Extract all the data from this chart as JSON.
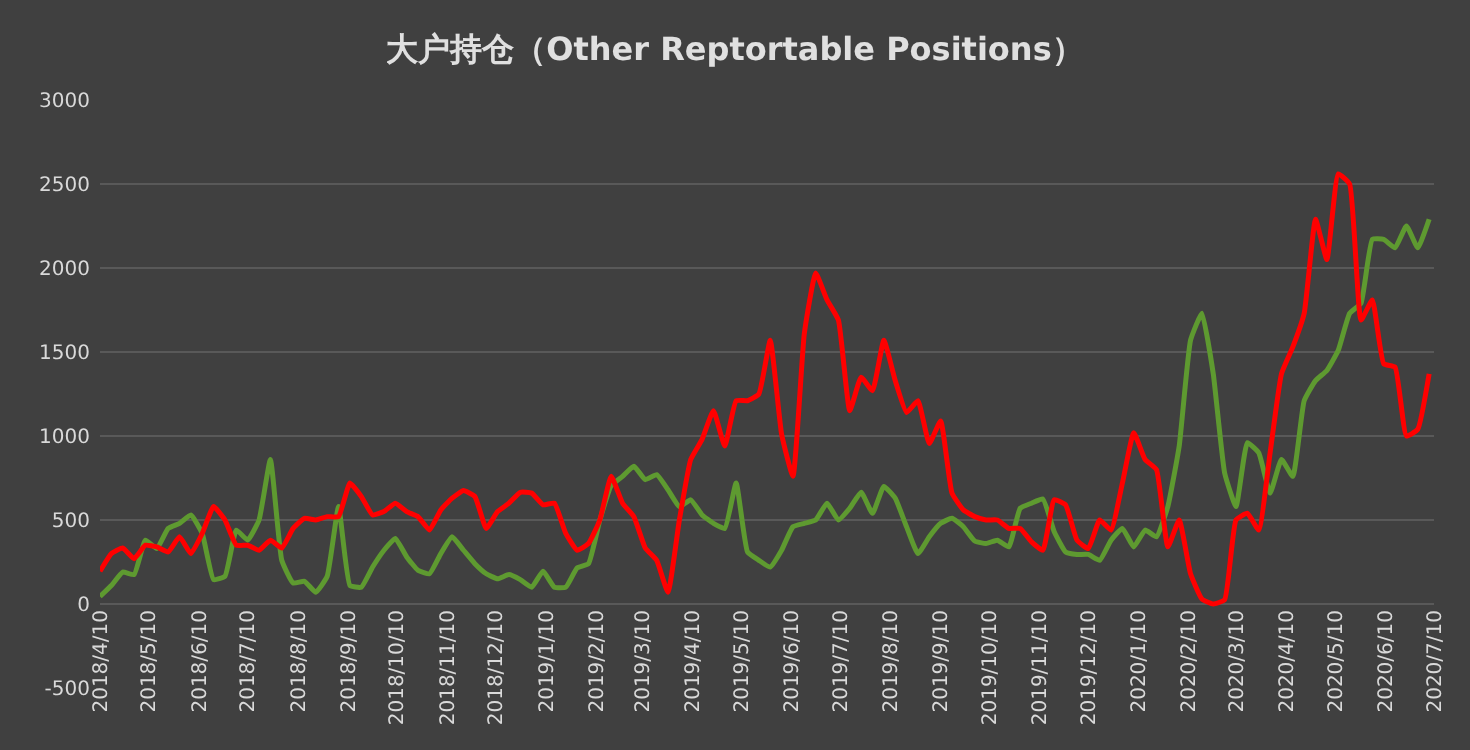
{
  "chart_data": {
    "type": "line",
    "title": "大户持仓（Other Reptortable Positions）",
    "x": [
      "2018-04-10",
      "2018-04-17",
      "2018-04-24",
      "2018-05-01",
      "2018-05-08",
      "2018-05-15",
      "2018-05-22",
      "2018-05-29",
      "2018-06-05",
      "2018-06-12",
      "2018-06-19",
      "2018-06-26",
      "2018-07-03",
      "2018-07-10",
      "2018-07-17",
      "2018-07-24",
      "2018-07-31",
      "2018-08-07",
      "2018-08-14",
      "2018-08-21",
      "2018-08-28",
      "2018-09-04",
      "2018-09-11",
      "2018-09-18",
      "2018-09-25",
      "2018-10-02",
      "2018-10-09",
      "2018-10-16",
      "2018-10-23",
      "2018-10-30",
      "2018-11-06",
      "2018-11-13",
      "2018-11-20",
      "2018-11-27",
      "2018-12-04",
      "2018-12-11",
      "2018-12-18",
      "2018-12-25",
      "2019-01-01",
      "2019-01-08",
      "2019-01-15",
      "2019-01-22",
      "2019-01-29",
      "2019-02-05",
      "2019-02-12",
      "2019-02-19",
      "2019-02-26",
      "2019-03-05",
      "2019-03-12",
      "2019-03-19",
      "2019-03-26",
      "2019-04-02",
      "2019-04-09",
      "2019-04-16",
      "2019-04-23",
      "2019-04-30",
      "2019-05-07",
      "2019-05-14",
      "2019-05-21",
      "2019-05-28",
      "2019-06-04",
      "2019-06-11",
      "2019-06-18",
      "2019-06-25",
      "2019-07-02",
      "2019-07-09",
      "2019-07-16",
      "2019-07-23",
      "2019-07-30",
      "2019-08-06",
      "2019-08-13",
      "2019-08-20",
      "2019-08-27",
      "2019-09-03",
      "2019-09-10",
      "2019-09-17",
      "2019-09-24",
      "2019-10-01",
      "2019-10-08",
      "2019-10-15",
      "2019-10-22",
      "2019-10-29",
      "2019-11-05",
      "2019-11-12",
      "2019-11-19",
      "2019-11-26",
      "2019-12-03",
      "2019-12-10",
      "2019-12-17",
      "2019-12-24",
      "2019-12-31",
      "2020-01-07",
      "2020-01-14",
      "2020-01-21",
      "2020-01-28",
      "2020-02-04",
      "2020-02-11",
      "2020-02-18",
      "2020-02-25",
      "2020-03-03",
      "2020-03-10",
      "2020-03-17",
      "2020-03-24",
      "2020-03-31",
      "2020-04-07",
      "2020-04-14",
      "2020-04-21",
      "2020-04-28",
      "2020-05-05",
      "2020-05-12",
      "2020-05-19",
      "2020-05-26",
      "2020-06-02",
      "2020-06-09",
      "2020-06-16",
      "2020-06-23",
      "2020-06-30",
      "2020-07-07"
    ],
    "series": [
      {
        "color": "#5e9a30",
        "values": [
          45,
          110,
          190,
          175,
          380,
          330,
          450,
          480,
          530,
          420,
          145,
          165,
          440,
          380,
          500,
          860,
          260,
          125,
          135,
          70,
          165,
          580,
          110,
          100,
          220,
          320,
          390,
          280,
          200,
          180,
          300,
          400,
          320,
          240,
          180,
          150,
          175,
          145,
          100,
          195,
          100,
          100,
          215,
          240,
          500,
          705,
          760,
          820,
          740,
          770,
          680,
          580,
          620,
          530,
          480,
          450,
          720,
          310,
          260,
          220,
          320,
          460,
          480,
          500,
          600,
          500,
          570,
          665,
          540,
          700,
          630,
          460,
          300,
          400,
          480,
          510,
          460,
          375,
          360,
          380,
          340,
          570,
          600,
          625,
          430,
          310,
          295,
          295,
          260,
          380,
          450,
          340,
          440,
          400,
          580,
          940,
          1570,
          1730,
          1370,
          780,
          580,
          960,
          900,
          660,
          860,
          760,
          1210,
          1330,
          1390,
          1510,
          1730,
          1790,
          2170,
          2170,
          2120,
          2250,
          2120,
          2290
        ]
      },
      {
        "color": "#ff0000",
        "values": [
          195,
          300,
          333,
          270,
          350,
          340,
          310,
          400,
          300,
          420,
          580,
          500,
          350,
          350,
          320,
          380,
          333,
          450,
          510,
          500,
          520,
          520,
          720,
          640,
          530,
          550,
          600,
          550,
          520,
          440,
          560,
          630,
          675,
          640,
          450,
          550,
          600,
          665,
          660,
          590,
          600,
          420,
          320,
          360,
          500,
          760,
          600,
          520,
          333,
          260,
          70,
          500,
          860,
          980,
          1150,
          940,
          1210,
          1210,
          1250,
          1570,
          1010,
          760,
          1610,
          1970,
          1810,
          1690,
          1150,
          1350,
          1270,
          1570,
          1330,
          1140,
          1210,
          955,
          1090,
          660,
          560,
          520,
          500,
          500,
          450,
          450,
          370,
          320,
          620,
          590,
          380,
          330,
          500,
          440,
          720,
          1020,
          860,
          800,
          340,
          500,
          180,
          30,
          0,
          25,
          500,
          540,
          440,
          900,
          1370,
          1530,
          1730,
          2290,
          2050,
          2560,
          2500,
          1690,
          1810,
          1430,
          1410,
          1000,
          1040,
          1370
        ]
      }
    ],
    "xlim": [
      "2018-04-10",
      "2020-07-10"
    ],
    "xticks": [
      {
        "value": "2018-04-10",
        "label": "2018/4/10"
      },
      {
        "value": "2018-05-10",
        "label": "2018/5/10"
      },
      {
        "value": "2018-06-10",
        "label": "2018/6/10"
      },
      {
        "value": "2018-07-10",
        "label": "2018/7/10"
      },
      {
        "value": "2018-08-10",
        "label": "2018/8/10"
      },
      {
        "value": "2018-09-10",
        "label": "2018/9/10"
      },
      {
        "value": "2018-10-10",
        "label": "2018/10/10"
      },
      {
        "value": "2018-11-10",
        "label": "2018/11/10"
      },
      {
        "value": "2018-12-10",
        "label": "2018/12/10"
      },
      {
        "value": "2019-01-10",
        "label": "2019/1/10"
      },
      {
        "value": "2019-02-10",
        "label": "2019/2/10"
      },
      {
        "value": "2019-03-10",
        "label": "2019/3/10"
      },
      {
        "value": "2019-04-10",
        "label": "2019/4/10"
      },
      {
        "value": "2019-05-10",
        "label": "2019/5/10"
      },
      {
        "value": "2019-06-10",
        "label": "2019/6/10"
      },
      {
        "value": "2019-07-10",
        "label": "2019/7/10"
      },
      {
        "value": "2019-08-10",
        "label": "2019/8/10"
      },
      {
        "value": "2019-09-10",
        "label": "2019/9/10"
      },
      {
        "value": "2019-10-10",
        "label": "2019/10/10"
      },
      {
        "value": "2019-11-10",
        "label": "2019/11/10"
      },
      {
        "value": "2019-12-10",
        "label": "2019/12/10"
      },
      {
        "value": "2020-01-10",
        "label": "2020/1/10"
      },
      {
        "value": "2020-02-10",
        "label": "2020/2/10"
      },
      {
        "value": "2020-03-10",
        "label": "2020/3/10"
      },
      {
        "value": "2020-04-10",
        "label": "2020/4/10"
      },
      {
        "value": "2020-05-10",
        "label": "2020/5/10"
      },
      {
        "value": "2020-06-10",
        "label": "2020/6/10"
      },
      {
        "value": "2020-07-10",
        "label": "2020/7/10"
      }
    ],
    "ylim": [
      -500,
      3000
    ],
    "yticks": [
      -500,
      0,
      500,
      1000,
      1500,
      2000,
      2500,
      3000
    ],
    "grid": "y",
    "marker": "none",
    "line_style": "solid"
  }
}
